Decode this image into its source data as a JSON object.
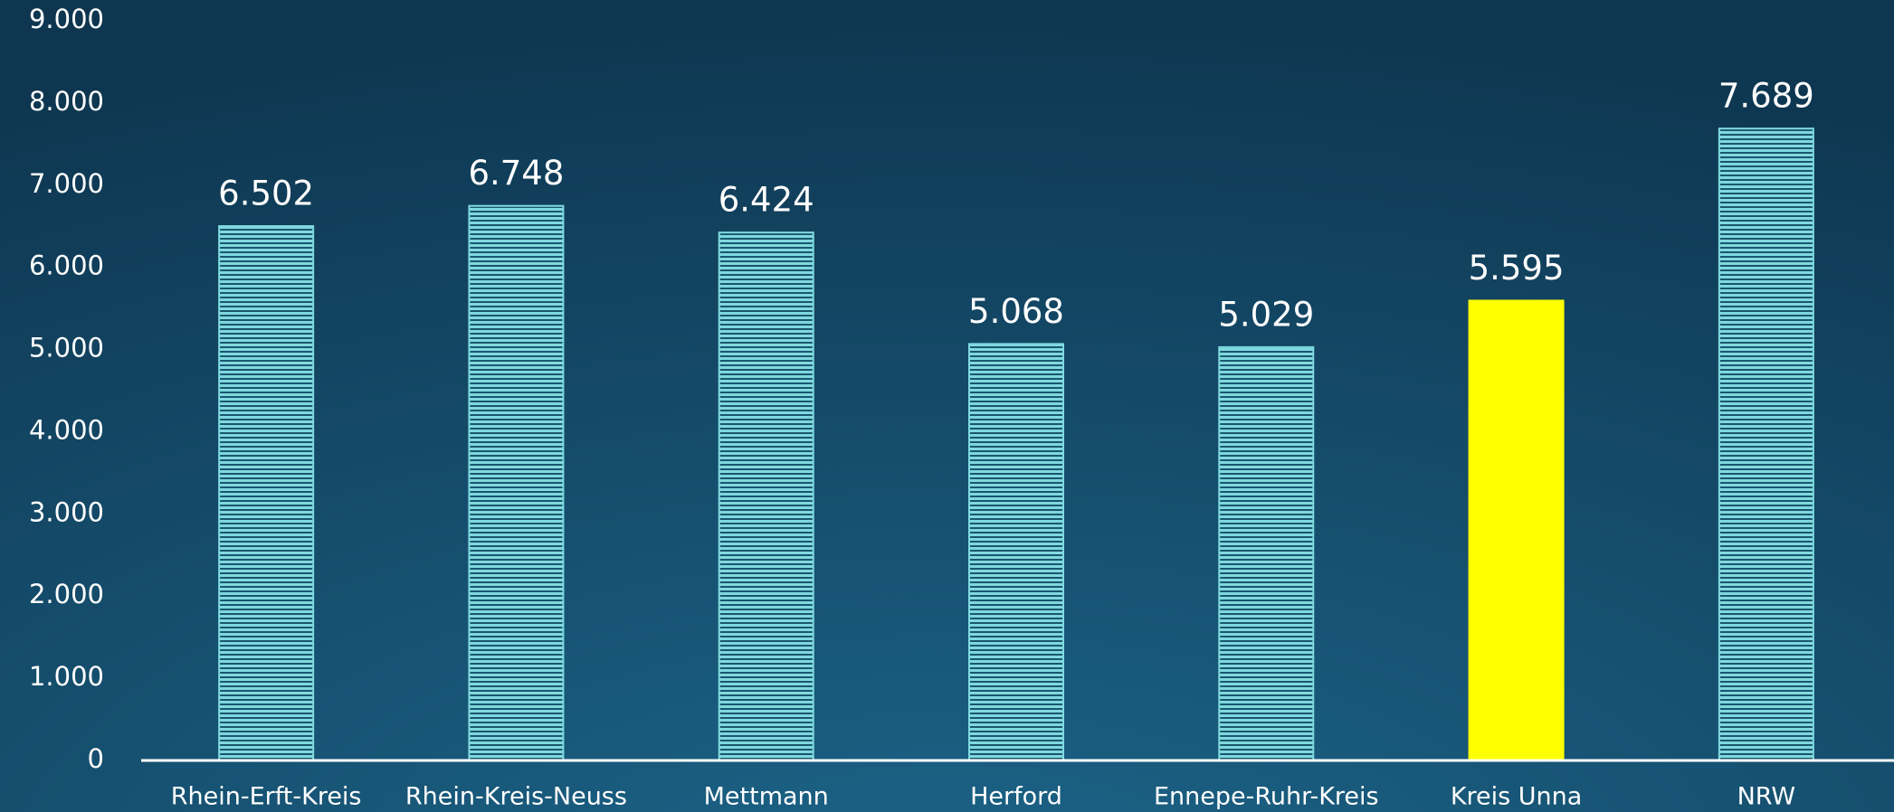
{
  "chart_data": {
    "type": "bar",
    "categories": [
      "Rhein-Erft-Kreis",
      "Rhein-Kreis-Neuss",
      "Mettmann",
      "Herford",
      "Ennepe-Ruhr-Kreis",
      "Kreis Unna",
      "NRW"
    ],
    "values": [
      6502,
      6748,
      6424,
      5068,
      5029,
      5595,
      7689
    ],
    "value_labels": [
      "6.502",
      "6.748",
      "6.424",
      "5.068",
      "5.029",
      "5.595",
      "7.689"
    ],
    "colors": [
      "#7fd9de",
      "#7fd9de",
      "#7fd9de",
      "#7fd9de",
      "#7fd9de",
      "#ffff00",
      "#7fd9de"
    ],
    "hatch": [
      true,
      true,
      true,
      true,
      true,
      false,
      true
    ],
    "ylim": [
      0,
      9000
    ],
    "yticks": [
      0,
      {
        "value": 1000,
        "label": "1.000"
      },
      {
        "value": 2000,
        "label": "2.000"
      },
      {
        "value": 3000,
        "label": "3.000"
      },
      {
        "value": 4000,
        "label": "4.000"
      },
      {
        "value": 5000,
        "label": "5.000"
      },
      {
        "value": 6000,
        "label": "6.000"
      },
      {
        "value": 7000,
        "label": "7.000"
      },
      {
        "value": 8000,
        "label": "8.000"
      },
      {
        "value": 9000,
        "label": "9.000"
      }
    ],
    "grid": false
  }
}
